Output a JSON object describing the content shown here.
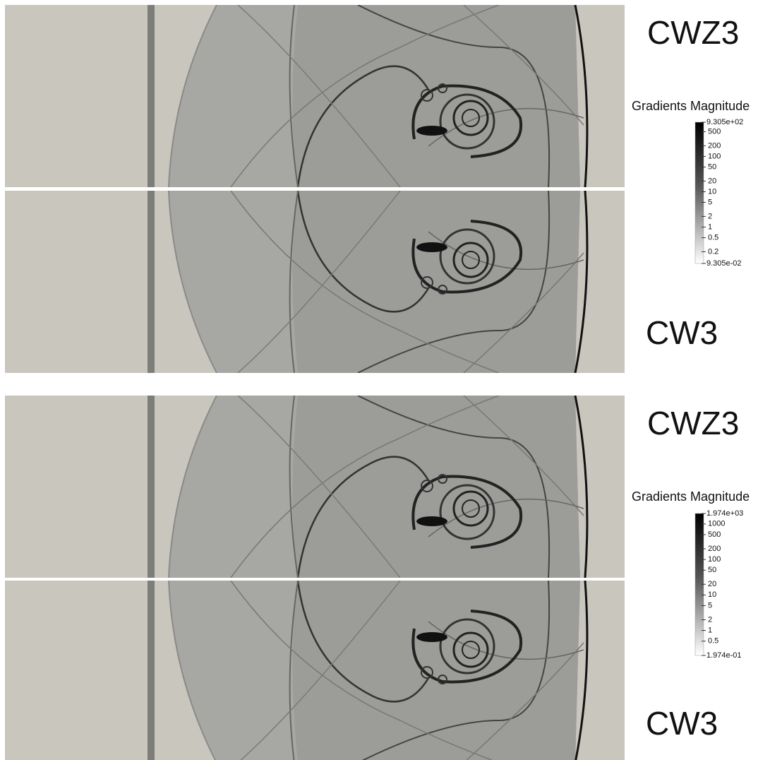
{
  "panels": [
    {
      "label": "CWZ3"
    },
    {
      "label": "CW3"
    },
    {
      "label": "CWZ3"
    },
    {
      "label": "CW3"
    }
  ],
  "colorbars": [
    {
      "title": "Gradients Magnitude",
      "scale": "log",
      "range": [
        {
          "value": 930.5,
          "label": "9.305e+02"
        },
        {
          "value": 0.09305,
          "label": "9.305e-02"
        }
      ],
      "ticks": [
        500,
        200,
        100,
        50,
        20,
        10,
        5,
        2,
        1,
        0.5,
        0.2
      ]
    },
    {
      "title": "Gradients Magnitude",
      "scale": "log",
      "range": [
        {
          "value": 1974,
          "label": "1.974e+03"
        },
        {
          "value": 0.1974,
          "label": "1.974e-01"
        }
      ],
      "ticks": [
        1000,
        500,
        200,
        100,
        50,
        20,
        10,
        5,
        2,
        1,
        0.5
      ]
    }
  ]
}
